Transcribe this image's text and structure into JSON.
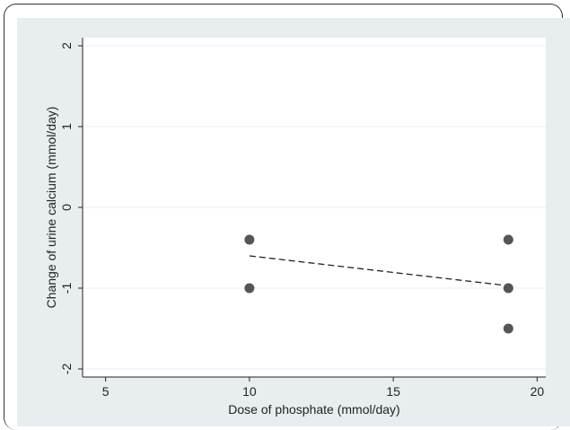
{
  "chart_data": {
    "type": "scatter",
    "title": "",
    "xlabel": "Dose of phosphate (mmol/day)",
    "ylabel": "Change of urine calcium (mmol/day)",
    "xlim": [
      4.2,
      20.3
    ],
    "ylim": [
      -2.1,
      2.1
    ],
    "xticks": [
      5,
      10,
      15,
      20
    ],
    "yticks": [
      -2,
      -1,
      0,
      1,
      2
    ],
    "grid": "horizontal",
    "legend": "none",
    "points": [
      {
        "x": 10,
        "y": -0.4
      },
      {
        "x": 10,
        "y": -1.0
      },
      {
        "x": 19,
        "y": -0.4
      },
      {
        "x": 19,
        "y": -1.0
      },
      {
        "x": 19,
        "y": -1.5
      }
    ],
    "fit_line": {
      "style": "dashed",
      "x": [
        10,
        19
      ],
      "y": [
        -0.6,
        -0.97
      ]
    },
    "colors": {
      "outer_background": "#e8edf0",
      "plot_background": "#ffffff",
      "grid": "#e9eef0",
      "marker": "#555555",
      "fit_line": "#222222"
    }
  }
}
